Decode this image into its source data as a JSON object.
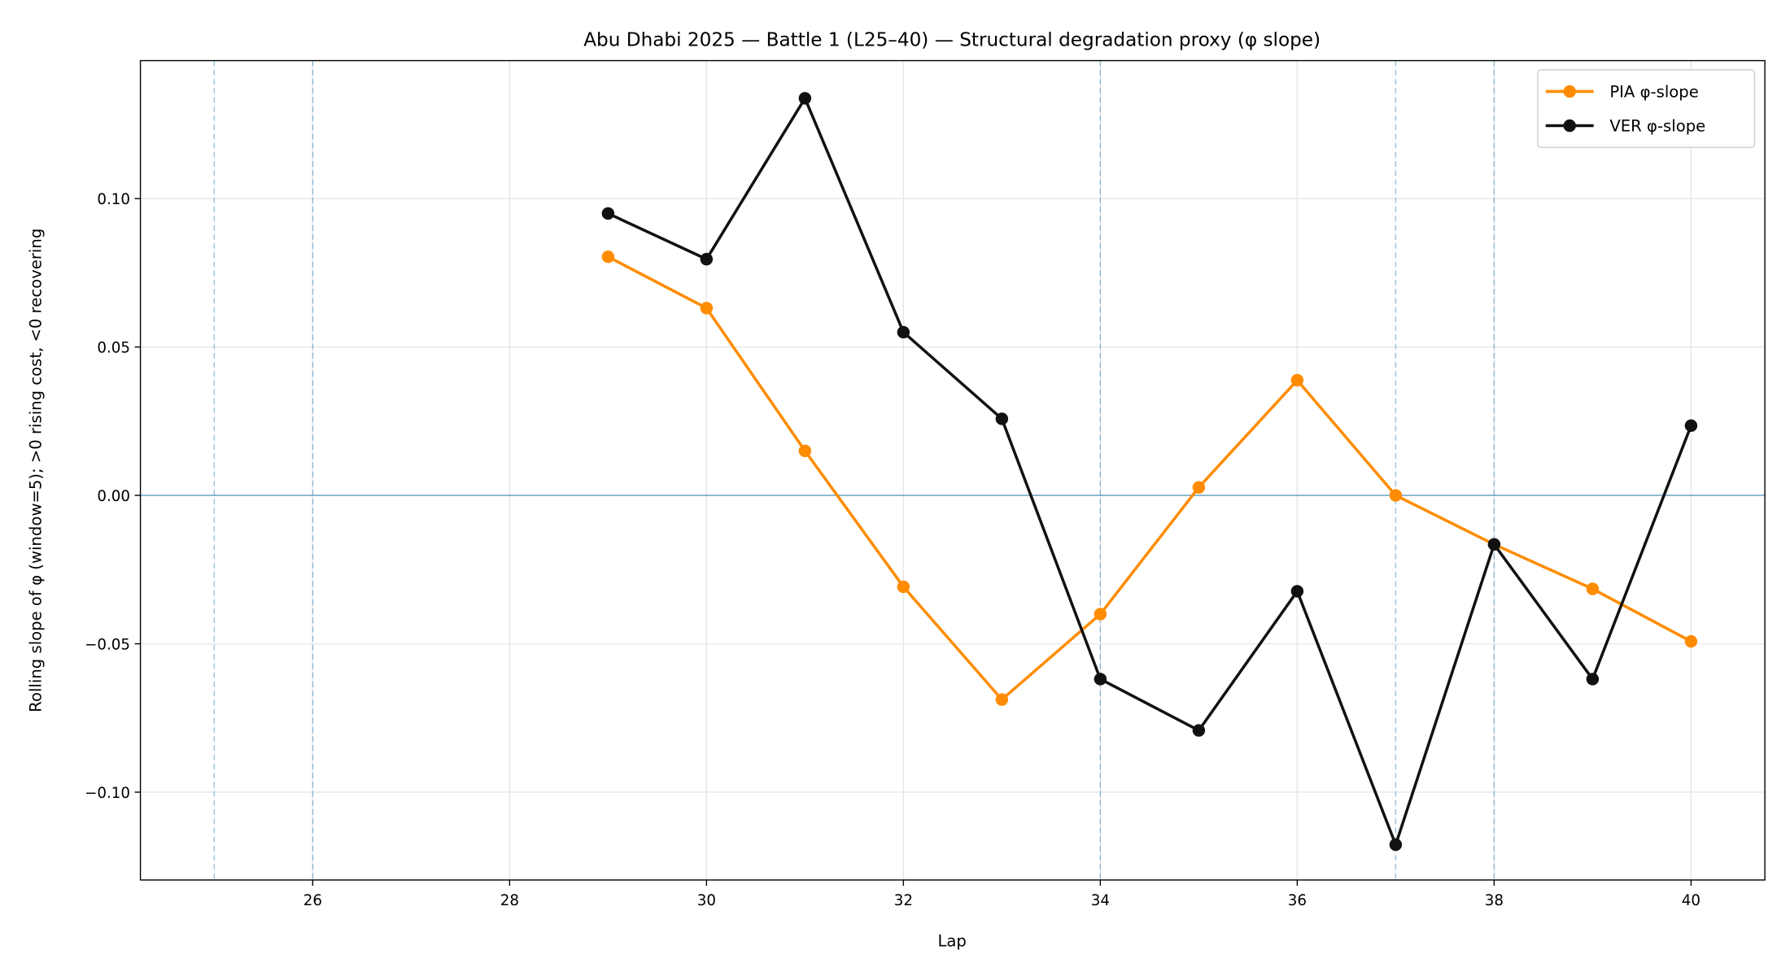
{
  "chart_data": {
    "type": "line",
    "title": "Abu Dhabi 2025 — Battle 1 (L25–40) — Structural degradation proxy (φ slope)",
    "xlabel": "Lap",
    "ylabel": "Rolling slope of φ (window=5); >0 rising cost, <0 recovering",
    "xlim": [
      24.25,
      40.75
    ],
    "ylim": [
      -0.1296,
      0.1465
    ],
    "xticks": [
      26,
      28,
      30,
      32,
      34,
      36,
      38,
      40
    ],
    "xtick_labels": [
      "26",
      "28",
      "30",
      "32",
      "34",
      "36",
      "38",
      "40"
    ],
    "yticks": [
      -0.1,
      -0.05,
      0.0,
      0.05,
      0.1
    ],
    "ytick_labels": [
      "−0.10",
      "−0.05",
      "0.00",
      "0.05",
      "0.10"
    ],
    "grid": true,
    "legend_position": "top-right",
    "reference_lines": {
      "horizontal_y": 0,
      "vertical_dashed_x": [
        25,
        26,
        34,
        37,
        38
      ],
      "color": "#1f77b4"
    },
    "x": [
      29,
      30,
      31,
      32,
      33,
      34,
      35,
      36,
      37,
      38,
      39,
      40
    ],
    "series": [
      {
        "name": "PIA φ-slope",
        "color": "#ff8c00",
        "values": [
          0.0804,
          0.0631,
          0.015,
          -0.0308,
          -0.0688,
          -0.04,
          0.0027,
          0.0388,
          0.0,
          -0.0165,
          -0.0315,
          -0.0492
        ]
      },
      {
        "name": "VER φ-slope",
        "color": "#111111",
        "values": [
          0.095,
          0.0796,
          0.1338,
          0.055,
          0.0258,
          -0.0619,
          -0.0792,
          -0.0323,
          -0.1177,
          -0.0165,
          -0.0619,
          0.0235
        ]
      }
    ]
  }
}
